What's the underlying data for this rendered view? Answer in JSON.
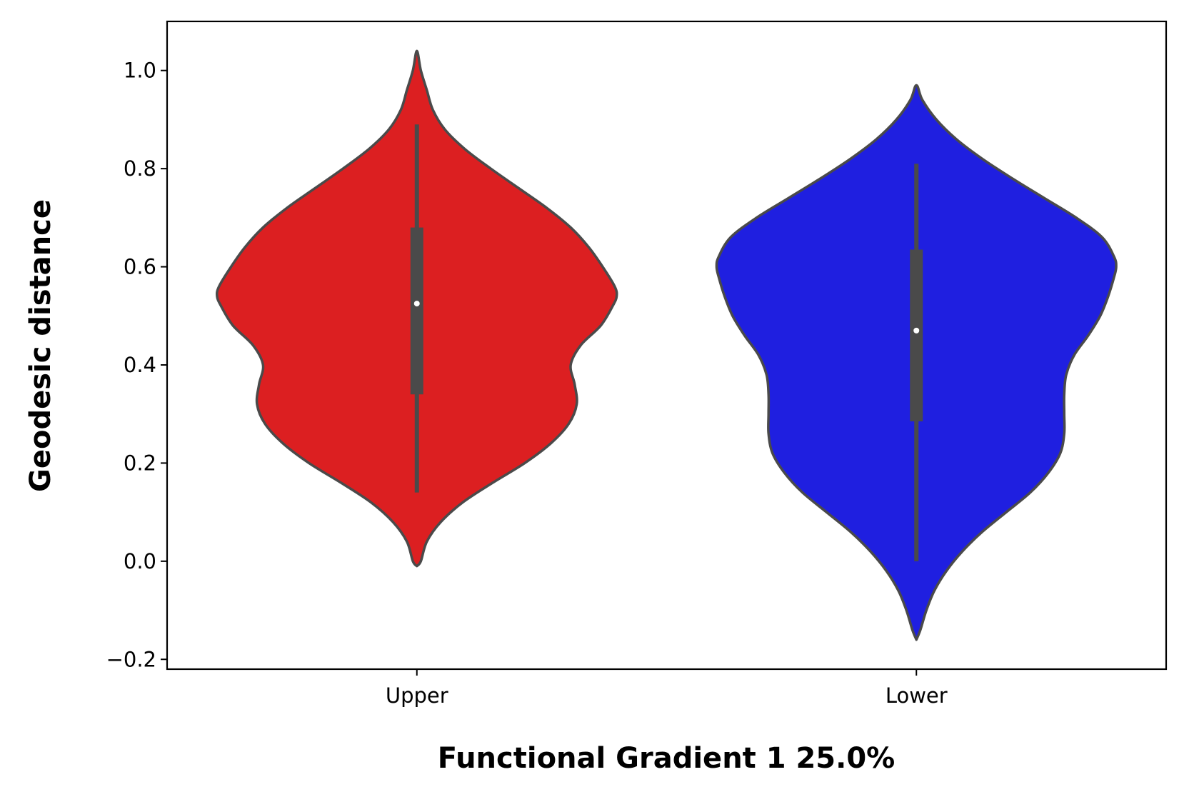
{
  "chart_data": {
    "type": "violin",
    "xlabel": "Functional Gradient 1 25.0%",
    "ylabel": "Geodesic distance",
    "ylim": [
      -0.22,
      1.1
    ],
    "yticks": [
      -0.2,
      0.0,
      0.2,
      0.4,
      0.6,
      0.8,
      1.0
    ],
    "ytick_labels": [
      "−0.2",
      "0.0",
      "0.2",
      "0.4",
      "0.6",
      "0.8",
      "1.0"
    ],
    "categories": [
      "Upper",
      "Lower"
    ],
    "grid": false,
    "legend": "none",
    "series": [
      {
        "name": "Upper",
        "color": "#dc1f21",
        "whisker": [
          0.14,
          0.89
        ],
        "q1": 0.34,
        "q3": 0.68,
        "median": 0.525,
        "density": [
          [
            -0.01,
            0.0
          ],
          [
            0.0,
            0.02
          ],
          [
            0.04,
            0.05
          ],
          [
            0.08,
            0.12
          ],
          [
            0.12,
            0.23
          ],
          [
            0.16,
            0.38
          ],
          [
            0.2,
            0.54
          ],
          [
            0.24,
            0.67
          ],
          [
            0.28,
            0.76
          ],
          [
            0.32,
            0.8
          ],
          [
            0.36,
            0.79
          ],
          [
            0.4,
            0.77
          ],
          [
            0.44,
            0.82
          ],
          [
            0.48,
            0.92
          ],
          [
            0.52,
            0.98
          ],
          [
            0.54,
            1.0
          ],
          [
            0.56,
            0.99
          ],
          [
            0.6,
            0.93
          ],
          [
            0.64,
            0.86
          ],
          [
            0.68,
            0.77
          ],
          [
            0.72,
            0.65
          ],
          [
            0.76,
            0.51
          ],
          [
            0.8,
            0.37
          ],
          [
            0.84,
            0.24
          ],
          [
            0.88,
            0.14
          ],
          [
            0.92,
            0.08
          ],
          [
            0.96,
            0.05
          ],
          [
            1.0,
            0.02
          ],
          [
            1.04,
            0.0
          ]
        ]
      },
      {
        "name": "Lower",
        "color": "#1f1fe0",
        "whisker": [
          0.0,
          0.81
        ],
        "q1": 0.285,
        "q3": 0.635,
        "median": 0.47,
        "density": [
          [
            -0.16,
            0.0
          ],
          [
            -0.14,
            0.02
          ],
          [
            -0.1,
            0.05
          ],
          [
            -0.06,
            0.09
          ],
          [
            -0.02,
            0.15
          ],
          [
            0.02,
            0.23
          ],
          [
            0.06,
            0.33
          ],
          [
            0.1,
            0.45
          ],
          [
            0.14,
            0.57
          ],
          [
            0.18,
            0.66
          ],
          [
            0.22,
            0.72
          ],
          [
            0.26,
            0.74
          ],
          [
            0.3,
            0.74
          ],
          [
            0.34,
            0.74
          ],
          [
            0.38,
            0.75
          ],
          [
            0.42,
            0.79
          ],
          [
            0.46,
            0.86
          ],
          [
            0.5,
            0.92
          ],
          [
            0.54,
            0.96
          ],
          [
            0.58,
            0.99
          ],
          [
            0.6,
            1.0
          ],
          [
            0.62,
            0.99
          ],
          [
            0.66,
            0.93
          ],
          [
            0.7,
            0.8
          ],
          [
            0.74,
            0.64
          ],
          [
            0.78,
            0.48
          ],
          [
            0.82,
            0.33
          ],
          [
            0.86,
            0.2
          ],
          [
            0.9,
            0.1
          ],
          [
            0.94,
            0.03
          ],
          [
            0.97,
            0.0
          ]
        ]
      }
    ]
  }
}
